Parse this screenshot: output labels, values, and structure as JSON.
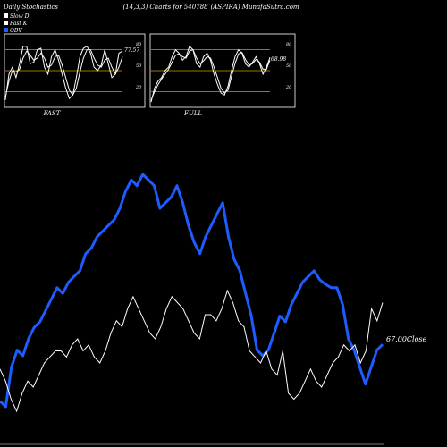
{
  "header": {
    "left": "Daily Stochastics",
    "center": "(14,3,3) Charts for 540788",
    "right": "(ASPIRA) MunafaSutra.com"
  },
  "legend": [
    {
      "label": "Slow  D",
      "color": "#ffffff"
    },
    {
      "label": "Fast K",
      "color": "#ffffff"
    },
    {
      "label": "OBV",
      "color": "#1e5cff"
    }
  ],
  "chart_data": [
    {
      "type": "line",
      "title": "FAST",
      "ylim": [
        0,
        100
      ],
      "gridlines": [
        20,
        50,
        80
      ],
      "tick_labels": [
        "80",
        "50",
        "20"
      ],
      "last_value_label": "77.57",
      "series": [
        {
          "name": "Fast K",
          "values": [
            8,
            45,
            55,
            40,
            60,
            85,
            85,
            60,
            62,
            80,
            82,
            55,
            45,
            70,
            80,
            65,
            45,
            25,
            10,
            15,
            40,
            70,
            82,
            85,
            75,
            55,
            50,
            58,
            80,
            60,
            40,
            45,
            75,
            78
          ]
        },
        {
          "name": "Slow  D",
          "values": [
            12,
            35,
            50,
            48,
            52,
            68,
            78,
            72,
            65,
            68,
            75,
            68,
            55,
            58,
            70,
            72,
            58,
            40,
            22,
            15,
            25,
            48,
            68,
            80,
            80,
            68,
            58,
            55,
            65,
            68,
            55,
            45,
            55,
            70
          ]
        }
      ]
    },
    {
      "type": "line",
      "title": "FULL",
      "ylim": [
        0,
        100
      ],
      "gridlines": [
        20,
        50,
        80
      ],
      "tick_labels": [
        "80",
        "50",
        "20"
      ],
      "last_value_label": "68.98",
      "series": [
        {
          "name": "Fast K",
          "values": [
            5,
            25,
            35,
            40,
            50,
            55,
            70,
            80,
            75,
            65,
            70,
            85,
            80,
            60,
            55,
            70,
            75,
            65,
            45,
            30,
            18,
            15,
            28,
            50,
            70,
            80,
            75,
            60,
            55,
            62,
            70,
            60,
            45,
            55,
            69
          ]
        },
        {
          "name": "Slow  D",
          "values": [
            8,
            20,
            30,
            38,
            45,
            52,
            62,
            72,
            74,
            70,
            68,
            78,
            80,
            68,
            60,
            64,
            70,
            68,
            55,
            40,
            25,
            18,
            22,
            42,
            60,
            74,
            76,
            66,
            58,
            60,
            66,
            62,
            52,
            52,
            65
          ]
        }
      ]
    },
    {
      "type": "line",
      "title": "",
      "close_label": "67.00Close",
      "series": [
        {
          "name": "OBV",
          "values": [
            155,
            150,
            185,
            200,
            195,
            210,
            220,
            225,
            235,
            245,
            255,
            250,
            260,
            265,
            270,
            285,
            290,
            300,
            305,
            310,
            315,
            325,
            340,
            350,
            345,
            355,
            350,
            345,
            325,
            330,
            335,
            345,
            330,
            310,
            295,
            285,
            300,
            310,
            320,
            330,
            300,
            280,
            270,
            250,
            230,
            200,
            195,
            200,
            215,
            230,
            225,
            240,
            250,
            260,
            265,
            270,
            262,
            258,
            255,
            255,
            240,
            210,
            200,
            185,
            170,
            185,
            200,
            205
          ]
        },
        {
          "name": "Price",
          "values": [
            80,
            70,
            55,
            45,
            60,
            70,
            65,
            75,
            85,
            90,
            95,
            95,
            90,
            100,
            105,
            95,
            100,
            90,
            85,
            95,
            110,
            120,
            115,
            130,
            140,
            130,
            120,
            110,
            105,
            115,
            130,
            140,
            135,
            130,
            120,
            110,
            105,
            125,
            125,
            120,
            130,
            145,
            135,
            120,
            115,
            95,
            90,
            85,
            95,
            80,
            75,
            95,
            60,
            55,
            60,
            70,
            80,
            70,
            65,
            75,
            85,
            90,
            100,
            95,
            100,
            85,
            95,
            130,
            120,
            135
          ]
        }
      ]
    }
  ]
}
